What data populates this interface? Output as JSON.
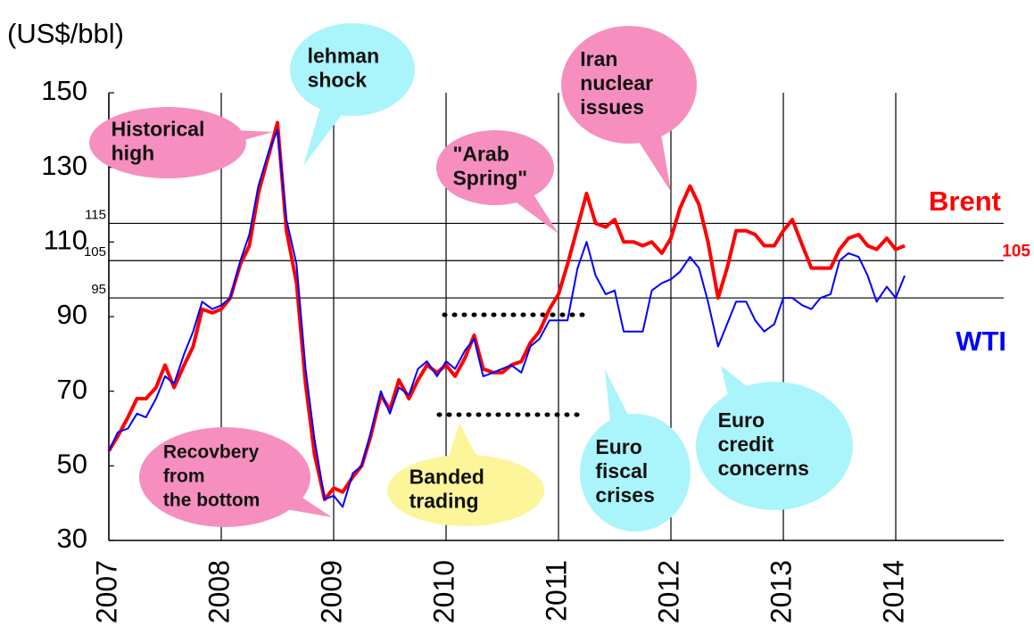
{
  "chart_data": {
    "type": "line",
    "y_axis_label": "(US$/bbl)",
    "x": [
      2007.0,
      2007.08,
      2007.17,
      2007.25,
      2007.33,
      2007.42,
      2007.5,
      2007.58,
      2007.67,
      2007.75,
      2007.83,
      2007.92,
      2008.0,
      2008.08,
      2008.17,
      2008.25,
      2008.33,
      2008.42,
      2008.5,
      2008.58,
      2008.67,
      2008.75,
      2008.83,
      2008.92,
      2009.0,
      2009.08,
      2009.17,
      2009.25,
      2009.33,
      2009.42,
      2009.5,
      2009.58,
      2009.67,
      2009.75,
      2009.83,
      2009.92,
      2010.0,
      2010.08,
      2010.17,
      2010.25,
      2010.33,
      2010.42,
      2010.5,
      2010.58,
      2010.67,
      2010.75,
      2010.83,
      2010.92,
      2011.0,
      2011.08,
      2011.17,
      2011.25,
      2011.33,
      2011.42,
      2011.5,
      2011.58,
      2011.67,
      2011.75,
      2011.83,
      2011.92,
      2012.0,
      2012.08,
      2012.17,
      2012.25,
      2012.33,
      2012.42,
      2012.5,
      2012.58,
      2012.67,
      2012.75,
      2012.83,
      2012.92,
      2013.0,
      2013.08,
      2013.17,
      2013.25,
      2013.33,
      2013.42,
      2013.5,
      2013.58,
      2013.67,
      2013.75,
      2013.83,
      2013.92,
      2014.0,
      2014.08
    ],
    "series": [
      {
        "name": "Brent",
        "color": "#ff0000",
        "values": [
          54,
          58,
          63,
          68,
          68,
          71,
          77,
          71,
          77,
          82,
          92,
          91,
          92,
          95,
          104,
          109,
          123,
          133,
          142,
          113,
          99,
          72,
          53,
          41,
          44,
          43,
          47,
          50,
          58,
          69,
          65,
          73,
          68,
          73,
          77,
          75,
          77,
          74,
          79,
          85,
          76,
          75,
          75,
          77,
          78,
          83,
          86,
          92,
          96,
          104,
          114,
          123,
          115,
          114,
          116,
          110,
          110,
          109,
          110,
          107,
          111,
          119,
          125,
          120,
          110,
          95,
          103,
          113,
          113,
          112,
          109,
          109,
          113,
          116,
          109,
          103,
          103,
          103,
          108,
          111,
          112,
          109,
          108,
          111,
          108,
          109
        ]
      },
      {
        "name": "WTI",
        "color": "#0000ff",
        "values": [
          54,
          59,
          60,
          64,
          63,
          68,
          74,
          72,
          80,
          86,
          94,
          92,
          93,
          95,
          105,
          112,
          125,
          134,
          140,
          116,
          104,
          76,
          57,
          41,
          42,
          39,
          48,
          50,
          59,
          70,
          64,
          71,
          69,
          76,
          78,
          74,
          78,
          76,
          81,
          84,
          74,
          75,
          76,
          77,
          75,
          82,
          84,
          89,
          89,
          89,
          103,
          110,
          101,
          96,
          97,
          86,
          86,
          86,
          97,
          99,
          100,
          102,
          106,
          103,
          94,
          82,
          88,
          94,
          94,
          89,
          86,
          88,
          95,
          95,
          93,
          92,
          95,
          96,
          105,
          107,
          106,
          101,
          94,
          98,
          95,
          101
        ]
      }
    ],
    "xlim": [
      2007,
      2014.96
    ],
    "xticks": [
      2007,
      2008,
      2009,
      2010,
      2011,
      2012,
      2013,
      2014
    ],
    "ylim": [
      30,
      150
    ],
    "yticks": [
      30,
      50,
      70,
      90,
      110,
      130,
      150
    ],
    "reference_lines": [
      {
        "value": 115
      },
      {
        "value": 105,
        "right_label": "105"
      },
      {
        "value": 95
      }
    ],
    "annotations": [
      {
        "lines": [
          "Historical",
          "high"
        ],
        "color": "#f68fbf"
      },
      {
        "lines": [
          "lehman",
          "shock"
        ],
        "color": "#aaf4fb"
      },
      {
        "lines": [
          "Iran",
          "nuclear",
          "issues"
        ],
        "color": "#f68fbf"
      },
      {
        "lines": [
          "\"Arab",
          "Spring\""
        ],
        "color": "#f68fbf"
      },
      {
        "lines": [
          "Recovbery",
          "from",
          "the bottom"
        ],
        "color": "#f68fbf"
      },
      {
        "lines": [
          "Banded",
          "trading"
        ],
        "color": "#fcf59a"
      },
      {
        "lines": [
          "Euro",
          "fiscal",
          "crises"
        ],
        "color": "#aaf4fb"
      },
      {
        "lines": [
          "Euro",
          "credit",
          "concerns"
        ],
        "color": "#aaf4fb"
      }
    ]
  }
}
